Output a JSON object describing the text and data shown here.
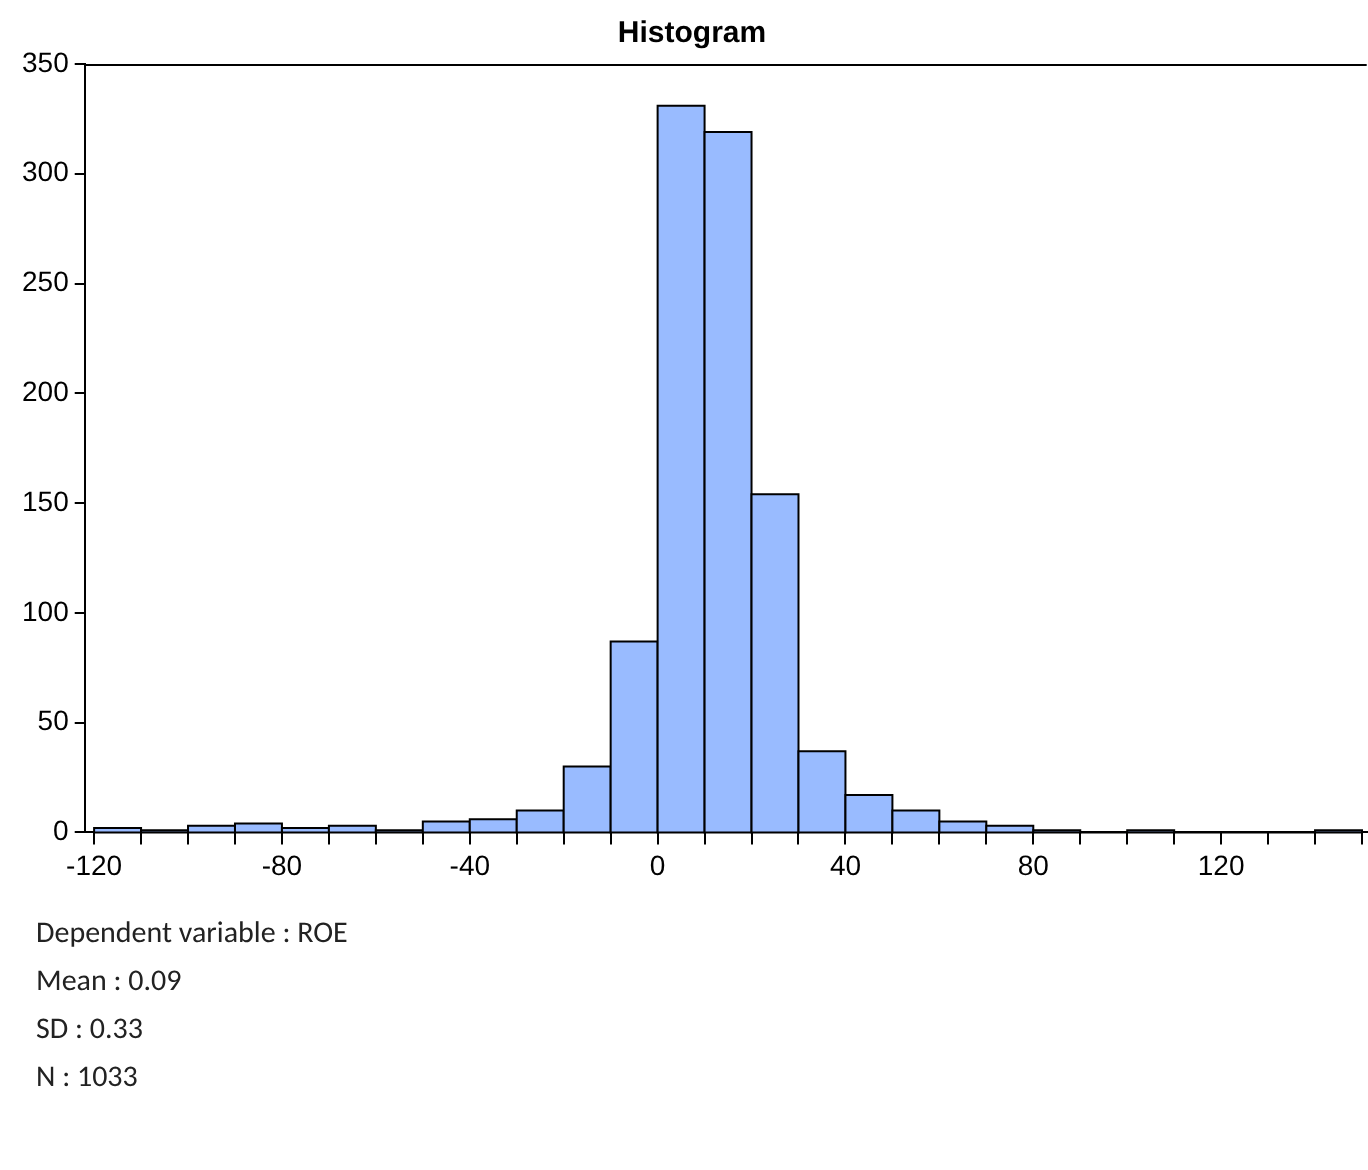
{
  "chart_data": {
    "type": "histogram",
    "title": "Histogram",
    "bins": [
      -120,
      -110,
      -100,
      -90,
      -80,
      -70,
      -60,
      -50,
      -40,
      -30,
      -20,
      -10,
      0,
      10,
      20,
      30,
      40,
      50,
      60,
      70,
      80,
      90,
      100,
      110,
      120,
      130,
      140,
      150
    ],
    "values": [
      2,
      1,
      3,
      4,
      2,
      3,
      1,
      5,
      6,
      10,
      30,
      87,
      331,
      319,
      154,
      37,
      17,
      10,
      5,
      3,
      1,
      0,
      1,
      0,
      0,
      0,
      1
    ],
    "color": "#99bbff",
    "xlim": [
      -122,
      151
    ],
    "xticks": [
      {
        "value": -120,
        "label": "-120"
      },
      {
        "value": -110,
        "label": null
      },
      {
        "value": -100,
        "label": null
      },
      {
        "value": -90,
        "label": null
      },
      -80,
      {
        "value": -70,
        "label": null
      },
      {
        "value": -60,
        "label": null
      },
      {
        "value": -50,
        "label": null
      },
      -40,
      {
        "value": -30,
        "label": null
      },
      {
        "value": -20,
        "label": null
      },
      {
        "value": -10,
        "label": null
      },
      0,
      {
        "value": 10,
        "label": null
      },
      {
        "value": 20,
        "label": null
      },
      {
        "value": 30,
        "label": null
      },
      40,
      {
        "value": 50,
        "label": null
      },
      {
        "value": 60,
        "label": null
      },
      {
        "value": 70,
        "label": null
      },
      80,
      {
        "value": 90,
        "label": null
      },
      {
        "value": 100,
        "label": null
      },
      {
        "value": 110,
        "label": null
      },
      120,
      {
        "value": 130,
        "label": null
      },
      {
        "value": 140,
        "label": null
      },
      {
        "value": 150,
        "label": null
      }
    ],
    "ylim": [
      0,
      350
    ],
    "yticks": [
      0,
      50,
      100,
      150,
      200,
      250,
      300,
      350
    ],
    "grid": false,
    "legend": false,
    "annotations": [
      "Dependent variable : ROE",
      "Mean : 0.09",
      "SD : 0.33",
      "N : 1033"
    ]
  }
}
